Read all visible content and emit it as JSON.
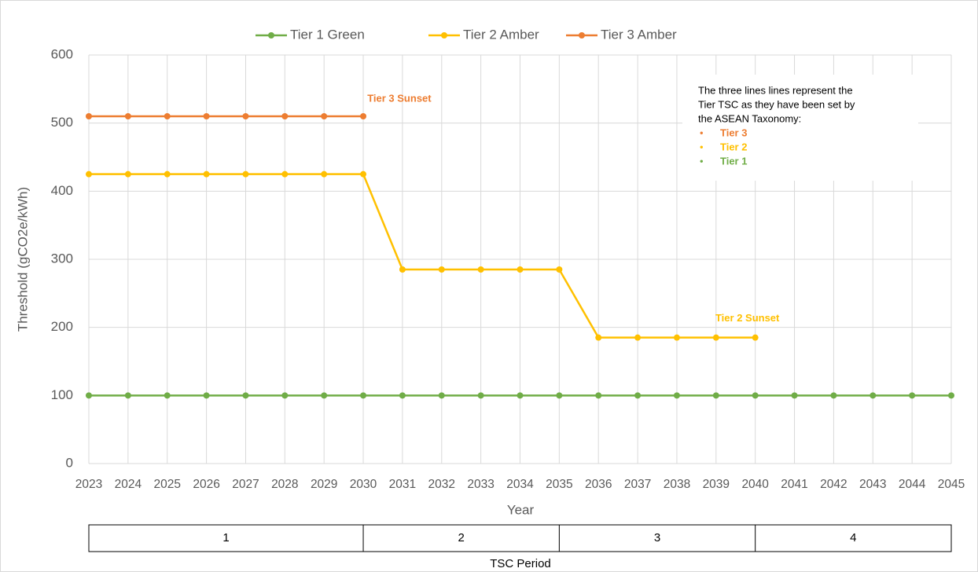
{
  "chart_data": {
    "type": "line",
    "y_label": "Threshold (gCO2e/kWh)",
    "x_label": "Year",
    "categories": [
      "2023",
      "2024",
      "2025",
      "2026",
      "2027",
      "2028",
      "2029",
      "2030",
      "2031",
      "2032",
      "2033",
      "2034",
      "2035",
      "2036",
      "2037",
      "2038",
      "2039",
      "2040",
      "2041",
      "2042",
      "2043",
      "2044",
      "2045"
    ],
    "series": [
      {
        "name": "Tier 1 Green",
        "color": "#70ad47",
        "values": [
          100,
          100,
          100,
          100,
          100,
          100,
          100,
          100,
          100,
          100,
          100,
          100,
          100,
          100,
          100,
          100,
          100,
          100,
          100,
          100,
          100,
          100,
          100
        ]
      },
      {
        "name": "Tier 2 Amber",
        "color": "#ffc000",
        "values": [
          425,
          425,
          425,
          425,
          425,
          425,
          425,
          425,
          285,
          285,
          285,
          285,
          285,
          185,
          185,
          185,
          185,
          185,
          null,
          null,
          null,
          null,
          null
        ]
      },
      {
        "name": "Tier 3 Amber",
        "color": "#ed7d31",
        "values": [
          510,
          510,
          510,
          510,
          510,
          510,
          510,
          510,
          null,
          null,
          null,
          null,
          null,
          null,
          null,
          null,
          null,
          null,
          null,
          null,
          null,
          null,
          null
        ]
      }
    ],
    "ylim": [
      0,
      600
    ],
    "yticks": [
      0,
      100,
      200,
      300,
      400,
      500,
      600
    ],
    "grid": true,
    "legend": "top",
    "annotations": [
      {
        "text": "Tier 3 Sunset",
        "color": "#ed7d31"
      },
      {
        "text": "Tier 2 Sunset",
        "color": "#ffc000"
      }
    ],
    "note": {
      "lines": [
        "The three lines lines represent the",
        "Tier TSC as they have been set by",
        "the ASEAN Taxonomy:"
      ],
      "items": [
        {
          "text": "Tier 3",
          "color": "#ed7d31"
        },
        {
          "text": "Tier 2",
          "color": "#ffc000"
        },
        {
          "text": "Tier 1",
          "color": "#70ad47"
        }
      ]
    },
    "period_title": "TSC Period",
    "periods": [
      {
        "label": "1",
        "from": "2023",
        "to": "2030"
      },
      {
        "label": "2",
        "from": "2030",
        "to": "2035"
      },
      {
        "label": "3",
        "from": "2035",
        "to": "2040"
      },
      {
        "label": "4",
        "from": "2040",
        "to": "2045"
      }
    ]
  }
}
